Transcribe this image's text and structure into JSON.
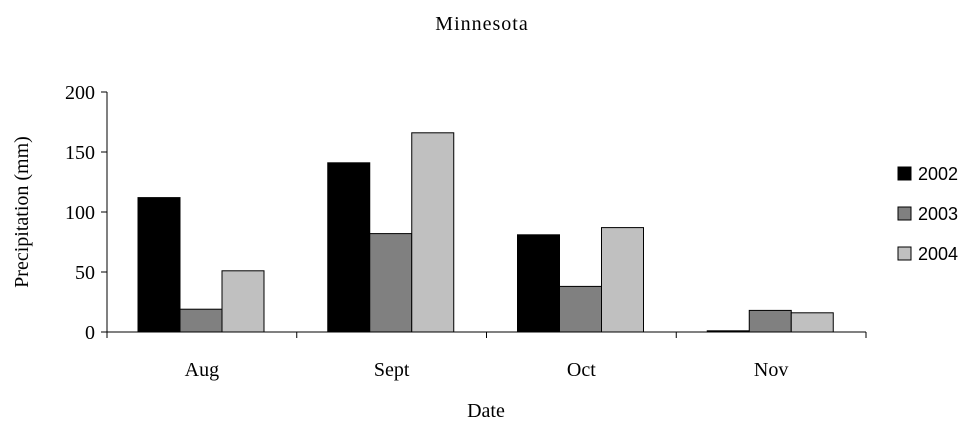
{
  "chart_data": {
    "type": "bar",
    "title": "Minnesota",
    "xlabel": "Date",
    "ylabel": "Precipitation (mm)",
    "categories": [
      "Aug",
      "Sept",
      "Oct",
      "Nov"
    ],
    "ylim": [
      0,
      200
    ],
    "yticks": [
      0,
      50,
      100,
      150,
      200
    ],
    "grid": false,
    "legend_position": "right",
    "series": [
      {
        "name": "2002",
        "color": "#000000",
        "values": [
          112,
          141,
          81,
          1
        ]
      },
      {
        "name": "2003",
        "color": "#808080",
        "values": [
          19,
          82,
          38,
          18
        ]
      },
      {
        "name": "2004",
        "color": "#c0c0c0",
        "values": [
          51,
          166,
          87,
          16
        ]
      }
    ]
  }
}
